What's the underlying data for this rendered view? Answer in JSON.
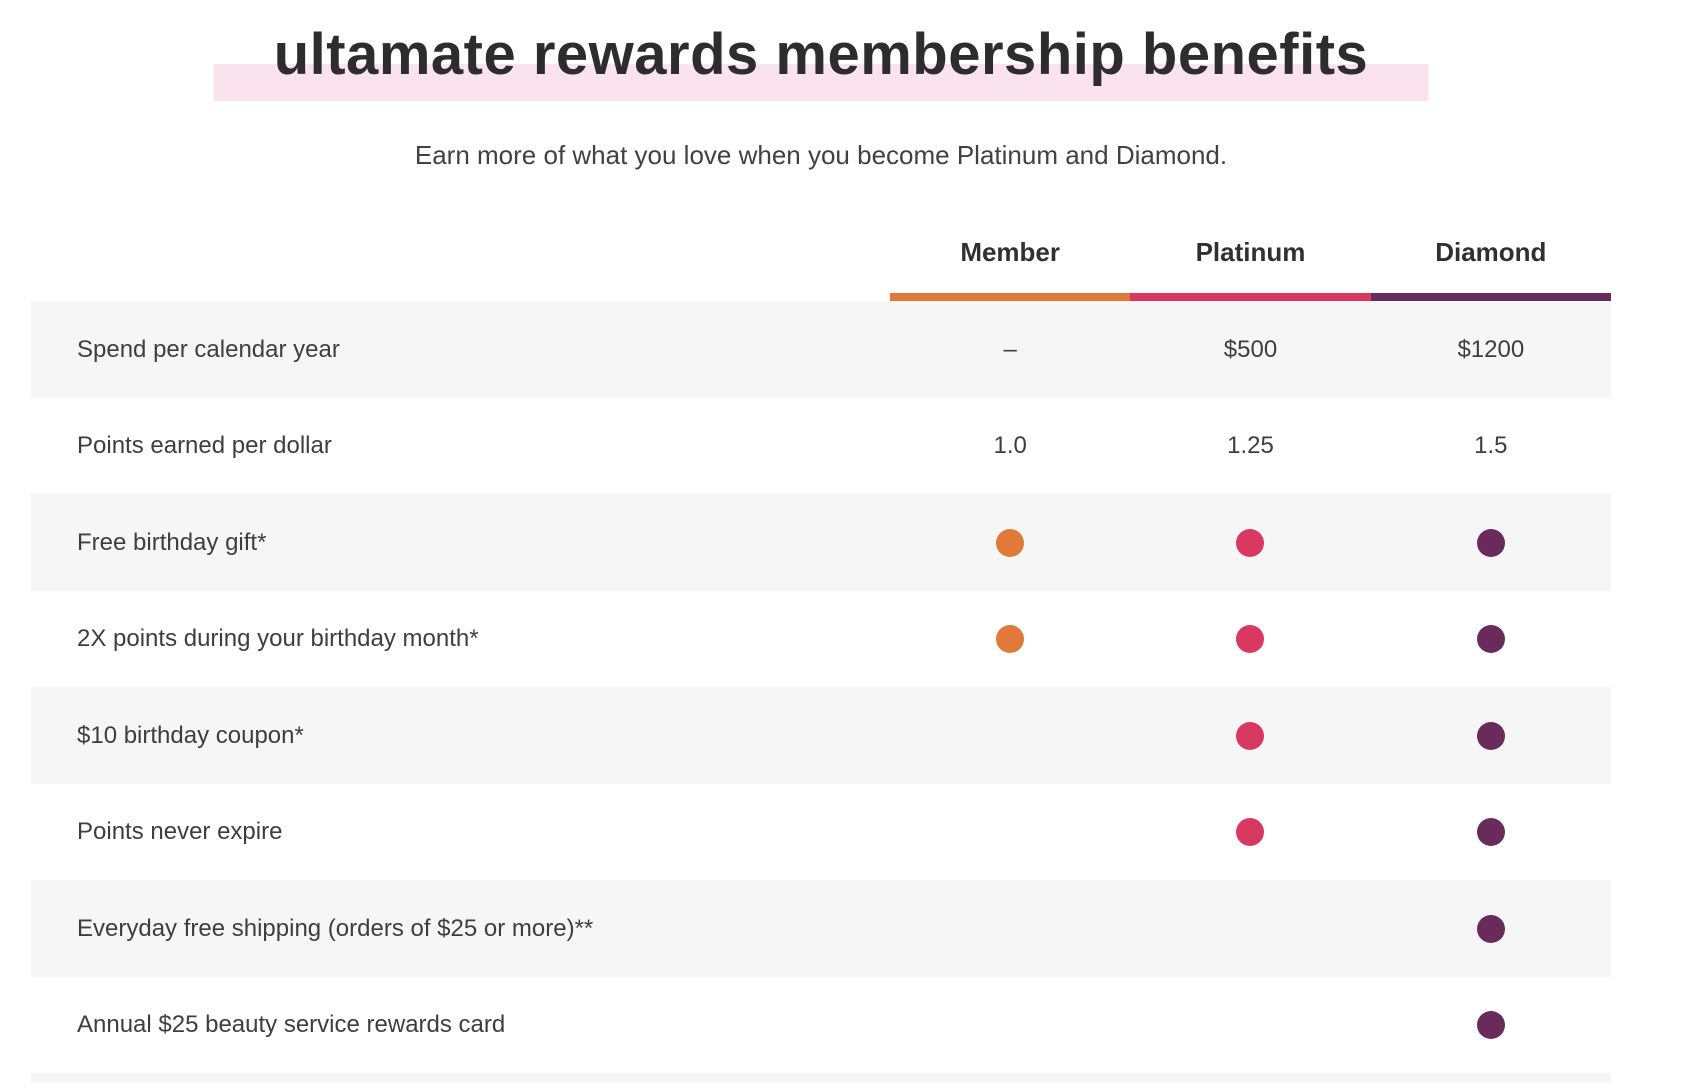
{
  "page": {
    "title": "ultamate rewards membership benefits",
    "subtitle": "Earn more of what you love when you become Platinum and Diamond."
  },
  "colors": {
    "title_text": "#2D2D2D",
    "body_text": "#3E3E3E",
    "title_highlight": "#FAE3ED",
    "row_alternate": "#F6F6F6",
    "member_orange": "#E1793A",
    "platinum_pink": "#D93960",
    "diamond_purple": "#692B5C"
  },
  "table": {
    "tiers": [
      {
        "label": "Member",
        "color": "#E1793A"
      },
      {
        "label": "Platinum",
        "color": "#D93960"
      },
      {
        "label": "Diamond",
        "color": "#692B5C"
      }
    ],
    "rows": [
      {
        "label": "Spend per calendar year",
        "values": [
          "–",
          "$500",
          "$1200"
        ]
      },
      {
        "label": "Points earned per dollar",
        "values": [
          "1.0",
          "1.25",
          "1.5"
        ]
      },
      {
        "label": "Free birthday gift*",
        "values": [
          "dot",
          "dot",
          "dot"
        ]
      },
      {
        "label": "2X points during your birthday month*",
        "values": [
          "dot",
          "dot",
          "dot"
        ]
      },
      {
        "label": "$10 birthday coupon*",
        "values": [
          "",
          "dot",
          "dot"
        ]
      },
      {
        "label": "Points never expire",
        "values": [
          "",
          "dot",
          "dot"
        ]
      },
      {
        "label": "Everyday free shipping (orders of $25 or more)**",
        "values": [
          "",
          "",
          "dot"
        ]
      },
      {
        "label": "Annual $25 beauty service rewards card",
        "values": [
          "",
          "",
          "dot"
        ]
      }
    ]
  }
}
